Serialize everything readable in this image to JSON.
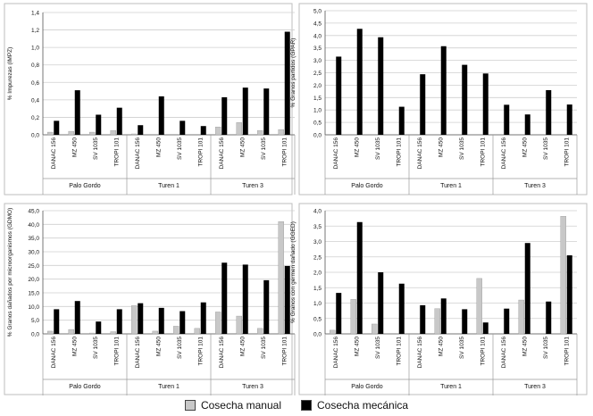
{
  "legend": {
    "manual_label": "Cosecha manual",
    "mech_label": "Cosecha mecánica",
    "manual_color": "#c8c8c8",
    "mech_color": "#000000"
  },
  "chart_data": [
    {
      "type": "bar",
      "ylabel": "% Impurezas (IMPZ)",
      "ylim": [
        0,
        1.4
      ],
      "yticks": [
        "0,0",
        "0,2",
        "0,4",
        "0,6",
        "0,8",
        "1,0",
        "1,2",
        "1,4"
      ],
      "categories": [
        "DANAC 156",
        "MZ 450",
        "SV 1035",
        "TROPI 101",
        "DANAC 156",
        "MZ 450",
        "SV 1035",
        "TROPI 101",
        "DANAC 156",
        "MZ 450",
        "SV 1035",
        "TROPI 101"
      ],
      "groups": [
        "Palo Gordo",
        "Turen 1",
        "Turen 3"
      ],
      "series": [
        {
          "name": "Cosecha manual",
          "values": [
            0.03,
            0.04,
            0.03,
            0.05,
            0.01,
            0.0,
            0.0,
            0.0,
            0.09,
            0.14,
            0.05,
            0.06
          ]
        },
        {
          "name": "Cosecha mecánica",
          "values": [
            0.16,
            0.51,
            0.23,
            0.31,
            0.11,
            0.44,
            0.16,
            0.1,
            0.43,
            0.54,
            0.53,
            1.18
          ]
        }
      ]
    },
    {
      "type": "bar",
      "ylabel": "% Granos partidos (GPAR)",
      "ylim": [
        0,
        5.0
      ],
      "yticks": [
        "0,0",
        "0,5",
        "1,0",
        "1,5",
        "2,0",
        "2,5",
        "3,0",
        "3,5",
        "4,0",
        "4,5",
        "5,0"
      ],
      "categories": [
        "DANAC 156",
        "MZ 450",
        "SV 1035",
        "TROPI 101",
        "DANAC 156",
        "MZ 450",
        "SV 1035",
        "TROPI 101",
        "DANAC 156",
        "MZ 450",
        "SV 1035",
        "TROPI 101"
      ],
      "groups": [
        "Palo Gordo",
        "Turen 1",
        "Turen 3"
      ],
      "series": [
        {
          "name": "Cosecha manual",
          "values": [
            0,
            0,
            0,
            0,
            0,
            0,
            0,
            0,
            0,
            0,
            0,
            0
          ]
        },
        {
          "name": "Cosecha mecánica",
          "values": [
            3.15,
            4.27,
            3.93,
            1.13,
            2.44,
            3.57,
            2.82,
            2.47,
            1.21,
            0.82,
            1.8,
            1.22
          ]
        }
      ]
    },
    {
      "type": "bar",
      "ylabel": "% Granos dañados por microorganismos (GDMO)",
      "ylim": [
        0,
        45.0
      ],
      "yticks": [
        "0,0",
        "5,0",
        "10,0",
        "15,0",
        "20,0",
        "25,0",
        "30,0",
        "35,0",
        "40,0",
        "45,0"
      ],
      "categories": [
        "DANAC 156",
        "MZ 450",
        "SV 1035",
        "TROPI 101",
        "DANAC 156",
        "MZ 450",
        "SV 1035",
        "TROPI 101",
        "DANAC 156",
        "MZ 450",
        "SV 1035",
        "TROPI 101"
      ],
      "groups": [
        "Palo Gordo",
        "Turen 1",
        "Turen 3"
      ],
      "series": [
        {
          "name": "Cosecha manual",
          "values": [
            1.0,
            1.6,
            0.3,
            0.8,
            10.3,
            1.0,
            2.8,
            2.0,
            8.0,
            6.5,
            2.0,
            41.0
          ]
        },
        {
          "name": "Cosecha mecánica",
          "values": [
            9.0,
            12.0,
            4.5,
            9.0,
            11.2,
            9.5,
            8.3,
            11.5,
            26.0,
            25.3,
            19.6,
            24.8
          ]
        }
      ]
    },
    {
      "type": "bar",
      "ylabel": "% Granos con germen dañado (GGED)",
      "ylim": [
        0,
        4.0
      ],
      "yticks": [
        "0,0",
        "0,5",
        "1,0",
        "1,5",
        "2,0",
        "2,5",
        "3,0",
        "3,5",
        "4,0"
      ],
      "categories": [
        "DANAC 156",
        "MZ 450",
        "SV 1035",
        "TROPI 101",
        "DANAC 156",
        "MZ 450",
        "SV 1035",
        "TROPI 101",
        "DANAC 156",
        "MZ 450",
        "SV 1035",
        "TROPI 101"
      ],
      "groups": [
        "Palo Gordo",
        "Turen 1",
        "Turen 3"
      ],
      "series": [
        {
          "name": "Cosecha manual",
          "values": [
            0.12,
            1.12,
            0.32,
            0.0,
            0.0,
            0.82,
            0.0,
            1.8,
            0.0,
            1.1,
            0.0,
            3.82
          ]
        },
        {
          "name": "Cosecha mecánica",
          "values": [
            1.33,
            3.63,
            2.0,
            1.63,
            0.93,
            1.15,
            0.8,
            0.37,
            0.82,
            2.95,
            1.05,
            2.55
          ]
        }
      ]
    }
  ]
}
